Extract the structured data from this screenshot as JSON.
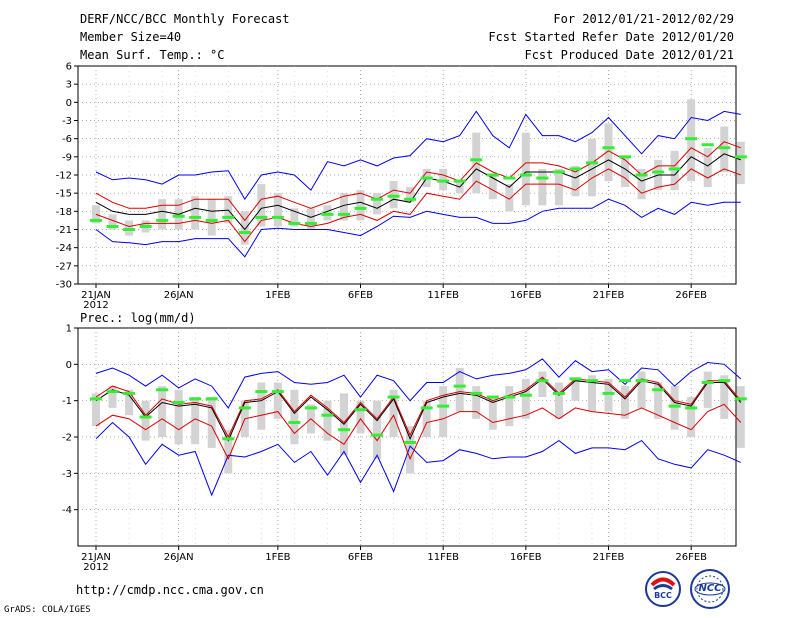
{
  "header": {
    "title": "DERF/NCC/BCC Monthly Forecast",
    "member_size": "Member Size=40",
    "variable": "Mean Surf. Temp.: °C",
    "period": "For 2012/01/21-2012/02/29",
    "started": "Fcst Started Refer Date 2012/01/20",
    "produced": "Fcst Produced Date 2012/01/21"
  },
  "footer": {
    "url": "http://cmdp.ncc.cma.gov.cn",
    "grads": "GrADS: COLA/IGES",
    "logo_bcc": "BCC",
    "logo_ncc": "NCC"
  },
  "colors": {
    "max_min": "#0000ee",
    "spread": "#dd0000",
    "mean": "#000000",
    "box": "#d3d3d3",
    "obs": "#33ee33"
  },
  "chart_data": [
    {
      "type": "line",
      "title": "Mean Surf. Temp.: °C",
      "x_tick_labels": [
        "21JAN",
        "26JAN",
        "1FEB",
        "6FEB",
        "11FEB",
        "16FEB",
        "21FEB",
        "26FEB"
      ],
      "x_tick_days": [
        1,
        6,
        12,
        17,
        22,
        27,
        32,
        37
      ],
      "x_sub_label": "2012",
      "xlim": [
        1,
        40
      ],
      "ylim": [
        -30,
        6
      ],
      "y_ticks": [
        6,
        3,
        0,
        -3,
        -6,
        -9,
        -12,
        -15,
        -18,
        -21,
        -24,
        -27,
        -30
      ],
      "days": [
        1,
        2,
        3,
        4,
        5,
        6,
        7,
        8,
        9,
        10,
        11,
        12,
        13,
        14,
        15,
        16,
        17,
        18,
        19,
        20,
        21,
        22,
        23,
        24,
        25,
        26,
        27,
        28,
        29,
        30,
        31,
        32,
        33,
        34,
        35,
        36,
        37,
        38,
        39,
        40
      ],
      "series": [
        {
          "name": "max",
          "values": [
            -11.5,
            -12.8,
            -12.5,
            -12.8,
            -13.5,
            -12,
            -12,
            -11.5,
            -11.3,
            -16,
            -12,
            -11.5,
            -12,
            -14.5,
            -9.8,
            -10.5,
            -9.5,
            -10.5,
            -9.2,
            -8.8,
            -6,
            -6.5,
            -5.5,
            -1.5,
            -5.5,
            -7.5,
            -2,
            -5.5,
            -5.5,
            -6.5,
            -5,
            -2.5,
            -5.5,
            -8.5,
            -5.5,
            -6,
            -2.5,
            -3,
            -1.5,
            -2
          ]
        },
        {
          "name": "upper",
          "values": [
            -15,
            -16.5,
            -17.5,
            -17.5,
            -17,
            -17,
            -16,
            -16,
            -16,
            -19.5,
            -16,
            -15.5,
            -16.5,
            -17.5,
            -16.5,
            -15.5,
            -15,
            -16,
            -14.5,
            -15,
            -11.5,
            -12,
            -13,
            -10,
            -11.5,
            -12.5,
            -10,
            -10,
            -10.5,
            -11.5,
            -10,
            -8,
            -9.5,
            -12,
            -10.5,
            -10.5,
            -7.5,
            -9,
            -6.5,
            -7.5
          ]
        },
        {
          "name": "mean",
          "values": [
            -16.5,
            -18,
            -18.5,
            -18.5,
            -18,
            -18.5,
            -17.5,
            -18,
            -17.8,
            -21,
            -17.5,
            -17,
            -18,
            -19,
            -18,
            -17,
            -16.5,
            -17.5,
            -16,
            -16.5,
            -12.5,
            -13,
            -14,
            -11,
            -12.5,
            -14,
            -11.5,
            -11.5,
            -11.5,
            -12.5,
            -11,
            -9.5,
            -11,
            -13,
            -12,
            -12,
            -9,
            -10.5,
            -8.5,
            -9.5
          ]
        },
        {
          "name": "lower",
          "values": [
            -18.5,
            -19.5,
            -20.5,
            -20,
            -20,
            -20,
            -19.5,
            -20,
            -19.5,
            -23,
            -19.5,
            -19,
            -20,
            -20.5,
            -20,
            -19,
            -18.5,
            -19.5,
            -18,
            -18.5,
            -15,
            -15.5,
            -16,
            -13,
            -14.5,
            -16,
            -13.5,
            -13.5,
            -13.5,
            -14.5,
            -12.5,
            -11,
            -12.5,
            -15,
            -14,
            -13.5,
            -11,
            -12.5,
            -11,
            -12
          ]
        },
        {
          "name": "min",
          "values": [
            -21,
            -23,
            -23.2,
            -23.5,
            -23,
            -23,
            -22.5,
            -22.5,
            -22.5,
            -25.5,
            -21,
            -20.8,
            -21,
            -21,
            -21,
            -21.5,
            -22,
            -20.5,
            -18.8,
            -19,
            -18,
            -18.5,
            -19,
            -19,
            -20,
            -20,
            -19.5,
            -18,
            -17.5,
            -17.5,
            -17.5,
            -16,
            -17,
            -19,
            -17.5,
            -18.5,
            -16.5,
            -17,
            -16.5,
            -16.5
          ]
        },
        {
          "name": "box_top",
          "values": [
            -17,
            -18.5,
            -19.5,
            -19.5,
            -16,
            -16,
            -15.5,
            -16,
            -15.5,
            -18,
            -13.5,
            -15,
            -17.5,
            -17.5,
            -17,
            -15,
            -14.5,
            -15,
            -13,
            -14,
            -11,
            -11,
            -13,
            -5,
            -12,
            -13.5,
            -5,
            -11,
            -11,
            -10.5,
            -6,
            -3.5,
            -9,
            -11,
            -9.5,
            -8,
            0.5,
            -7.5,
            -4,
            -6.5
          ]
        },
        {
          "name": "box_bottom",
          "values": [
            -20,
            -21,
            -22,
            -21.5,
            -21,
            -21,
            -21,
            -22,
            -20,
            -23.5,
            -20.5,
            -20.5,
            -20.5,
            -21,
            -19.5,
            -19.5,
            -19.5,
            -18.5,
            -17.5,
            -16.5,
            -14,
            -14.5,
            -15,
            -15,
            -16,
            -18,
            -17,
            -17,
            -17,
            -15.5,
            -15.5,
            -13,
            -14,
            -16,
            -14.5,
            -14.5,
            -13,
            -14,
            -11.5,
            -13.5
          ]
        },
        {
          "name": "observed",
          "values": [
            -19.5,
            -20.5,
            -21,
            -20.5,
            -19.5,
            -18.8,
            -19,
            -19.5,
            -19,
            -21.5,
            -19,
            -19,
            -20,
            -20,
            -18.5,
            -18.5,
            -17.5,
            -16,
            -15.5,
            -16,
            -12.5,
            -13,
            -13,
            -9.5,
            -12,
            -12.5,
            -12,
            -12.5,
            -11.5,
            -11,
            -10,
            -7.5,
            -9,
            -12,
            -11.5,
            -11,
            -6,
            -7,
            -7.5,
            -9
          ]
        }
      ]
    },
    {
      "type": "line",
      "title": "Prec.: log(mm/d)",
      "x_tick_labels": [
        "21JAN",
        "26JAN",
        "1FEB",
        "6FEB",
        "11FEB",
        "16FEB",
        "21FEB",
        "26FEB"
      ],
      "x_tick_days": [
        1,
        6,
        12,
        17,
        22,
        27,
        32,
        37
      ],
      "x_sub_label": "2012",
      "xlim": [
        1,
        40
      ],
      "ylim": [
        -5,
        1
      ],
      "y_ticks": [
        1,
        0,
        -1,
        -2,
        -3,
        -4
      ],
      "days": [
        1,
        2,
        3,
        4,
        5,
        6,
        7,
        8,
        9,
        10,
        11,
        12,
        13,
        14,
        15,
        16,
        17,
        18,
        19,
        20,
        21,
        22,
        23,
        24,
        25,
        26,
        27,
        28,
        29,
        30,
        31,
        32,
        33,
        34,
        35,
        36,
        37,
        38,
        39,
        40
      ],
      "series": [
        {
          "name": "max",
          "values": [
            -0.25,
            -0.1,
            -0.3,
            -0.6,
            -0.3,
            -0.65,
            -0.4,
            -0.6,
            -1.2,
            -0.35,
            -0.25,
            -0.2,
            -0.5,
            -0.55,
            -0.5,
            -0.3,
            -0.9,
            -0.3,
            -0.45,
            -1,
            -0.5,
            -0.5,
            -0.2,
            -0.4,
            -0.3,
            -0.25,
            -0.15,
            0.15,
            -0.35,
            0.1,
            -0.2,
            -0.15,
            -0.55,
            -0.1,
            -0.15,
            -0.6,
            -0.2,
            0.05,
            0,
            -0.4
          ]
        },
        {
          "name": "upper",
          "values": [
            -0.9,
            -0.6,
            -0.75,
            -1.4,
            -0.95,
            -1.1,
            -1.05,
            -1.15,
            -2,
            -1,
            -0.95,
            -0.7,
            -1.3,
            -0.85,
            -1.2,
            -1.6,
            -1.05,
            -1.5,
            -0.9,
            -1.95,
            -1,
            -0.85,
            -0.75,
            -0.8,
            -1,
            -0.85,
            -0.7,
            -0.35,
            -0.8,
            -0.4,
            -0.45,
            -0.5,
            -0.9,
            -0.4,
            -0.5,
            -1,
            -1.1,
            -0.45,
            -0.45,
            -1
          ]
        },
        {
          "name": "mean",
          "values": [
            -1,
            -0.7,
            -0.85,
            -1.45,
            -1.05,
            -1.15,
            -1.1,
            -1.2,
            -2.1,
            -1.05,
            -1,
            -0.75,
            -1.35,
            -0.9,
            -1.25,
            -1.65,
            -1.1,
            -1.55,
            -0.95,
            -2.05,
            -1.05,
            -0.9,
            -0.8,
            -0.85,
            -1.05,
            -0.9,
            -0.75,
            -0.4,
            -0.85,
            -0.45,
            -0.5,
            -0.55,
            -0.95,
            -0.45,
            -0.55,
            -1.05,
            -1.15,
            -0.5,
            -0.5,
            -1.05
          ]
        },
        {
          "name": "lower",
          "values": [
            -1.7,
            -1.4,
            -1.5,
            -1.8,
            -1.5,
            -1.8,
            -1.5,
            -1.7,
            -2.6,
            -1.5,
            -1.4,
            -1.3,
            -1.9,
            -1.5,
            -1.9,
            -2.2,
            -1.5,
            -2.1,
            -1.4,
            -2.6,
            -1.6,
            -1.5,
            -1.3,
            -1.3,
            -1.6,
            -1.5,
            -1.4,
            -1.2,
            -1.5,
            -1.2,
            -1.3,
            -1.35,
            -1.4,
            -1.2,
            -1.4,
            -1.6,
            -1.8,
            -1.3,
            -1.1,
            -1.6
          ]
        },
        {
          "name": "min",
          "values": [
            -2.05,
            -1.6,
            -2,
            -2.75,
            -2.2,
            -2.5,
            -2.4,
            -3.6,
            -2.5,
            -2.55,
            -2.4,
            -2.2,
            -2.7,
            -2.4,
            -3.05,
            -2.4,
            -3.25,
            -2.5,
            -3.5,
            -2.25,
            -2.7,
            -2.65,
            -2.35,
            -2.45,
            -2.6,
            -2.55,
            -2.55,
            -2.4,
            -2.1,
            -2.45,
            -2.3,
            -2.3,
            -2.35,
            -2.1,
            -2.6,
            -2.75,
            -2.85,
            -2.35,
            -2.5,
            -2.7
          ]
        },
        {
          "name": "box_top",
          "values": [
            -0.8,
            -0.6,
            -0.7,
            -1,
            -0.6,
            -0.7,
            -0.9,
            -0.9,
            -1.8,
            -1,
            -0.5,
            -0.5,
            -0.7,
            -1.1,
            -1,
            -0.8,
            -1,
            -1,
            -0.7,
            -1.7,
            -1,
            -0.6,
            -0.1,
            -0.6,
            -0.9,
            -0.6,
            -0.4,
            -0.2,
            -0.5,
            -0.4,
            -0.3,
            -0.4,
            -0.6,
            -0.2,
            -0.5,
            -0.6,
            -0.9,
            -0.2,
            -0.3,
            -0.6
          ]
        },
        {
          "name": "box_bottom",
          "values": [
            -1.7,
            -1.2,
            -1.4,
            -2.1,
            -2,
            -2.2,
            -2.2,
            -2.3,
            -3,
            -2,
            -1.8,
            -1.5,
            -2.2,
            -1.9,
            -2.1,
            -2.5,
            -1.9,
            -2.6,
            -2,
            -3,
            -2,
            -2,
            -1.3,
            -1.5,
            -1.8,
            -1.7,
            -1.5,
            -0.9,
            -1.5,
            -1,
            -1.3,
            -1.3,
            -1.5,
            -1.2,
            -1.5,
            -1.8,
            -2,
            -1.2,
            -1.5,
            -2.3
          ]
        },
        {
          "name": "observed",
          "values": [
            -0.95,
            -0.75,
            -0.8,
            -1.45,
            -0.7,
            -1.05,
            -0.95,
            -0.95,
            -2.05,
            -1.2,
            -0.75,
            -0.75,
            -1.6,
            -1.2,
            -1.4,
            -1.8,
            -1.25,
            -1.95,
            -0.9,
            -2.15,
            -1.2,
            -1.15,
            -0.6,
            -0.8,
            -0.9,
            -0.9,
            -0.85,
            -0.45,
            -0.8,
            -0.4,
            -0.45,
            -0.8,
            -0.45,
            -0.45,
            -0.7,
            -1.15,
            -1.2,
            -0.5,
            -0.45,
            -0.95
          ]
        }
      ]
    }
  ]
}
